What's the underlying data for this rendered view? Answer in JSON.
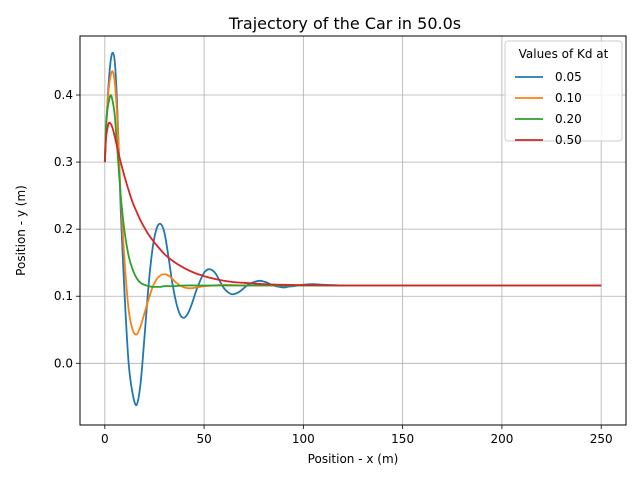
{
  "chart_data": {
    "type": "line",
    "title": "Trajectory of the Car in 50.0s",
    "xlabel": "Position - x (m)",
    "ylabel": "Position - y (m)",
    "xlim": [
      -12.5,
      262.5
    ],
    "ylim": [
      -0.092,
      0.488
    ],
    "xticks": [
      0,
      50,
      100,
      150,
      200,
      250
    ],
    "yticks": [
      0.0,
      0.1,
      0.2,
      0.3,
      0.4
    ],
    "xtick_labels": [
      "0",
      "50",
      "100",
      "150",
      "200",
      "250"
    ],
    "ytick_labels": [
      "0.0",
      "0.1",
      "0.2",
      "0.3",
      "0.4"
    ],
    "grid": true,
    "legend": {
      "title": "Values of Kd at",
      "placement": "top-right"
    },
    "series": [
      {
        "name": "0.05",
        "color": "#1f77b4",
        "x": [
          0,
          1,
          2,
          3,
          4,
          5,
          6,
          7,
          8,
          10,
          12,
          14,
          16,
          18,
          20,
          22,
          24,
          26,
          28,
          30,
          32,
          34,
          36,
          38,
          40,
          42,
          44,
          46,
          48,
          50,
          52,
          54,
          56,
          58,
          60,
          62,
          64,
          66,
          68,
          70,
          72,
          74,
          76,
          78,
          80,
          82,
          84,
          86,
          88,
          90,
          92,
          95,
          100,
          105,
          110,
          120,
          130,
          150,
          200,
          250
        ],
        "y": [
          0.3,
          0.37,
          0.42,
          0.452,
          0.463,
          0.45,
          0.4,
          0.32,
          0.23,
          0.1,
          0.0,
          -0.045,
          -0.062,
          -0.03,
          0.04,
          0.115,
          0.17,
          0.2,
          0.208,
          0.195,
          0.16,
          0.12,
          0.09,
          0.072,
          0.068,
          0.075,
          0.09,
          0.108,
          0.123,
          0.135,
          0.14,
          0.139,
          0.133,
          0.122,
          0.112,
          0.106,
          0.103,
          0.104,
          0.107,
          0.112,
          0.117,
          0.12,
          0.122,
          0.123,
          0.122,
          0.12,
          0.117,
          0.115,
          0.114,
          0.113,
          0.114,
          0.115,
          0.117,
          0.118,
          0.117,
          0.116,
          0.116,
          0.116,
          0.116,
          0.116
        ]
      },
      {
        "name": "0.10",
        "color": "#ff7f0e",
        "x": [
          0,
          1,
          2,
          3,
          4,
          5,
          6,
          7,
          8,
          10,
          12,
          14,
          16,
          18,
          20,
          22,
          24,
          26,
          28,
          30,
          32,
          34,
          36,
          38,
          40,
          42,
          44,
          46,
          48,
          50,
          55,
          60,
          70,
          80,
          100,
          150,
          200,
          250
        ],
        "y": [
          0.3,
          0.37,
          0.41,
          0.43,
          0.435,
          0.42,
          0.38,
          0.32,
          0.25,
          0.15,
          0.08,
          0.05,
          0.043,
          0.055,
          0.075,
          0.095,
          0.113,
          0.125,
          0.131,
          0.133,
          0.131,
          0.126,
          0.12,
          0.116,
          0.113,
          0.112,
          0.112,
          0.113,
          0.114,
          0.115,
          0.116,
          0.117,
          0.116,
          0.116,
          0.116,
          0.116,
          0.116,
          0.116
        ]
      },
      {
        "name": "0.20",
        "color": "#2ca02c",
        "x": [
          0,
          0.5,
          1,
          2,
          3,
          4,
          5,
          6,
          7,
          8,
          9,
          10,
          12,
          14,
          16,
          18,
          20,
          22,
          24,
          26,
          28,
          30,
          35,
          40,
          50,
          60,
          80,
          100,
          150,
          200,
          250
        ],
        "y": [
          0.3,
          0.35,
          0.37,
          0.39,
          0.4,
          0.39,
          0.37,
          0.33,
          0.29,
          0.25,
          0.22,
          0.195,
          0.16,
          0.14,
          0.127,
          0.12,
          0.117,
          0.115,
          0.114,
          0.114,
          0.114,
          0.115,
          0.115,
          0.116,
          0.116,
          0.116,
          0.116,
          0.116,
          0.116,
          0.116,
          0.116
        ]
      },
      {
        "name": "0.50",
        "color": "#d62728",
        "x": [
          0,
          0.5,
          1,
          2,
          3,
          4,
          5,
          6,
          7,
          8,
          10,
          12,
          14,
          16,
          18,
          20,
          22,
          25,
          30,
          35,
          40,
          45,
          50,
          55,
          60,
          65,
          70,
          75,
          80,
          90,
          100,
          110,
          120,
          150,
          200,
          250
        ],
        "y": [
          0.3,
          0.33,
          0.345,
          0.358,
          0.357,
          0.35,
          0.338,
          0.325,
          0.312,
          0.3,
          0.278,
          0.258,
          0.24,
          0.226,
          0.213,
          0.202,
          0.192,
          0.18,
          0.163,
          0.151,
          0.142,
          0.135,
          0.13,
          0.126,
          0.123,
          0.121,
          0.12,
          0.119,
          0.118,
          0.117,
          0.1165,
          0.1162,
          0.116,
          0.116,
          0.116,
          0.116
        ]
      }
    ]
  }
}
